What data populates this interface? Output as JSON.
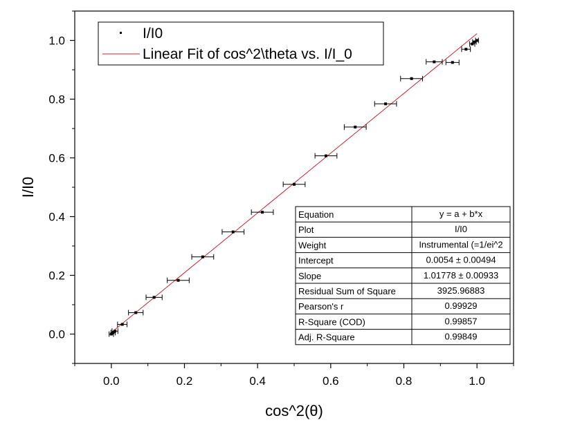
{
  "chart_data": {
    "type": "scatter",
    "xlabel": "cos^2(θ)",
    "ylabel": "I/I0",
    "xlim": [
      -0.1,
      1.1
    ],
    "ylim": [
      -0.1,
      1.1
    ],
    "xticks": [
      "0.0",
      "0.2",
      "0.4",
      "0.6",
      "0.8",
      "1.0"
    ],
    "yticks": [
      "0.0",
      "0.2",
      "0.4",
      "0.6",
      "0.8",
      "1.0"
    ],
    "xtick_values": [
      0,
      0.2,
      0.4,
      0.6,
      0.8,
      1.0
    ],
    "ytick_values": [
      0,
      0.2,
      0.4,
      0.6,
      0.8,
      1.0
    ],
    "grid": false,
    "legend_position": "top-left",
    "series": [
      {
        "name": "I/I0",
        "color": "#000000",
        "x": [
          0.0,
          0.005,
          0.01,
          0.03,
          0.067,
          0.117,
          0.183,
          0.25,
          0.333,
          0.413,
          0.5,
          0.587,
          0.667,
          0.75,
          0.821,
          0.883,
          0.933,
          0.97,
          0.987,
          0.993,
          1.0
        ],
        "y": [
          0.0,
          0.005,
          0.01,
          0.033,
          0.073,
          0.125,
          0.183,
          0.263,
          0.348,
          0.415,
          0.51,
          0.607,
          0.705,
          0.784,
          0.87,
          0.927,
          0.925,
          0.97,
          0.988,
          0.995,
          1.0
        ],
        "xerr": [
          0.006,
          0.006,
          0.008,
          0.013,
          0.02,
          0.022,
          0.03,
          0.03,
          0.03,
          0.03,
          0.03,
          0.03,
          0.03,
          0.03,
          0.03,
          0.022,
          0.018,
          0.012,
          0.007,
          0.005,
          0.004
        ]
      },
      {
        "name": "Linear Fit of cos^2\\theta vs. I/I_0",
        "type": "line",
        "color": "#d0202a",
        "intercept": 0.0054,
        "slope": 1.01778,
        "x_range": [
          0.0,
          1.0
        ]
      }
    ],
    "stats_table": {
      "rows": [
        {
          "label": "Equation",
          "value": "y = a + b*x"
        },
        {
          "label": "Plot",
          "value": "I/I0"
        },
        {
          "label": "Weight",
          "value": "Instrumental (=1/ei^2"
        },
        {
          "label": "Intercept",
          "value": "0.0054 ± 0.00494"
        },
        {
          "label": "Slope",
          "value": "1.01778 ± 0.00933"
        },
        {
          "label": "Residual Sum of Square",
          "value": "3925.96883"
        },
        {
          "label": "Pearson's r",
          "value": "0.99929"
        },
        {
          "label": "R-Square (COD)",
          "value": "0.99857"
        },
        {
          "label": "Adj. R-Square",
          "value": "0.99849"
        }
      ]
    }
  }
}
